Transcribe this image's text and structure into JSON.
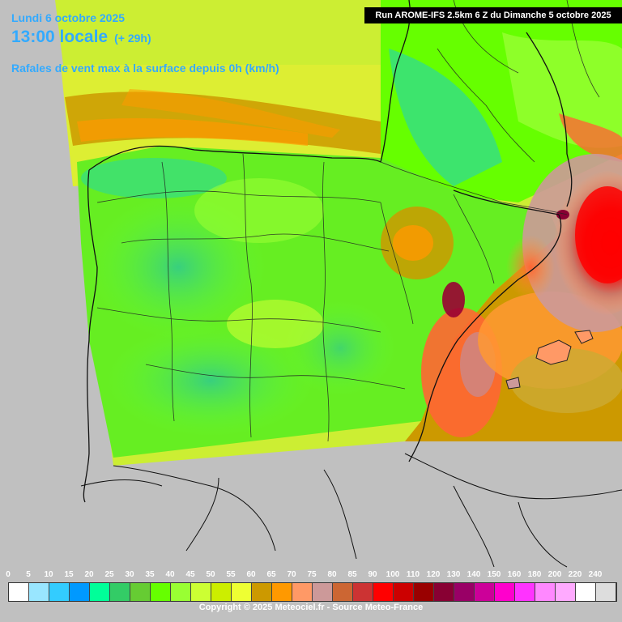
{
  "header": {
    "date": "Lundi 6 octobre 2025",
    "time": "13:00 locale",
    "offset": "(+ 29h)",
    "parameter": "Rafales de vent max à la surface depuis 0h (km/h)",
    "run": "Run AROME-IFS 2.5km 6 Z du Dimanche 5 octobre 2025"
  },
  "legend": {
    "ticks": [
      "0",
      "5",
      "10",
      "15",
      "20",
      "25",
      "30",
      "35",
      "40",
      "45",
      "50",
      "55",
      "60",
      "65",
      "70",
      "75",
      "80",
      "85",
      "90",
      "100",
      "110",
      "120",
      "130",
      "140",
      "150",
      "160",
      "180",
      "200",
      "220",
      "240"
    ],
    "colors": [
      "#ffffff",
      "#99e6ff",
      "#33ccff",
      "#0099ff",
      "#00ff99",
      "#33cc66",
      "#66cc33",
      "#66ff00",
      "#99ff33",
      "#ccff33",
      "#ccee00",
      "#eeff33",
      "#cc9900",
      "#ff9900",
      "#ff9966",
      "#cc9999",
      "#cc6633",
      "#cc3333",
      "#ff0000",
      "#cc0000",
      "#990000",
      "#880033",
      "#990066",
      "#cc0099",
      "#ff00cc",
      "#ff33ff",
      "#ff88ff",
      "#ffaaff",
      "#ffffff",
      "#dddddd"
    ]
  },
  "copyright": "Copyright © 2025 Meteociel.fr - Source Meteo-France"
}
